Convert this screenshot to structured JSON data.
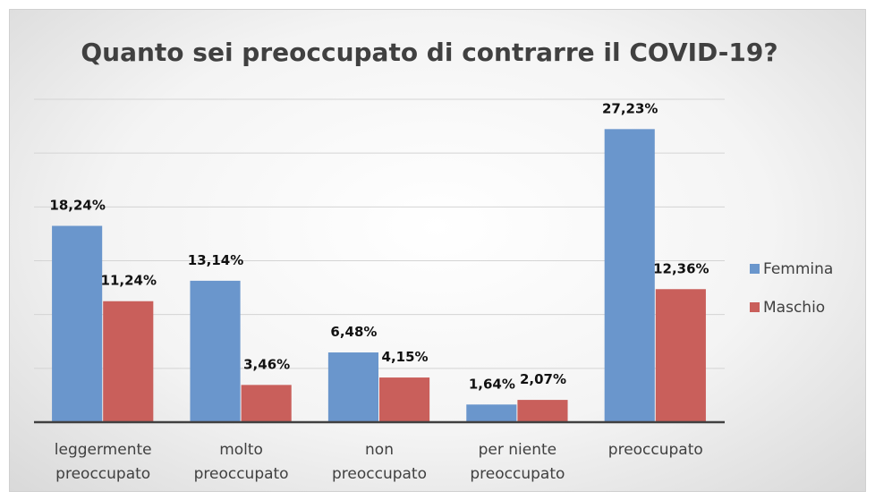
{
  "chart_data": {
    "type": "bar",
    "title": "Quanto sei preoccupato di contrarre il COVID-19?",
    "categories": [
      "leggermente preoccupato",
      "molto preoccupato",
      "non preoccupato",
      "per niente preoccupato",
      "preoccupato"
    ],
    "series": [
      {
        "name": "Femmina",
        "color": "#6a96cc",
        "values": [
          18.24,
          13.14,
          6.48,
          1.64,
          27.23
        ],
        "value_labels": [
          "18,24%",
          "13,14%",
          "6,48%",
          "1,64%",
          "27,23%"
        ]
      },
      {
        "name": "Maschio",
        "color": "#c95f5b",
        "values": [
          11.24,
          3.46,
          4.15,
          2.07,
          12.36
        ],
        "value_labels": [
          "11,24%",
          "3,46%",
          "4,15%",
          "2,07%",
          "12,36%"
        ]
      }
    ],
    "ylim": [
      0,
      30
    ],
    "yticks": [
      0,
      5,
      10,
      15,
      20,
      25,
      30
    ],
    "grid": true,
    "legend": "right"
  }
}
